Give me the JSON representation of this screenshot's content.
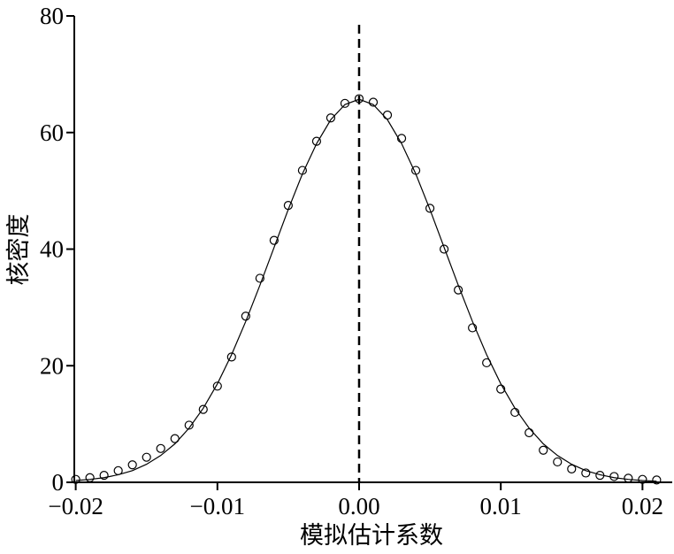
{
  "chart_data": {
    "type": "scatter",
    "x_label": "模拟估计系数",
    "y_label": "核密度",
    "x": [
      -0.02,
      -0.019,
      -0.018,
      -0.017,
      -0.016,
      -0.015,
      -0.014,
      -0.013,
      -0.012,
      -0.011,
      -0.01,
      -0.009,
      -0.008,
      -0.007,
      -0.006,
      -0.005,
      -0.004,
      -0.003,
      -0.002,
      -0.001,
      0.0,
      0.001,
      0.002,
      0.003,
      0.004,
      0.005,
      0.006,
      0.007,
      0.008,
      0.009,
      0.01,
      0.011,
      0.012,
      0.013,
      0.014,
      0.015,
      0.016,
      0.017,
      0.018,
      0.019,
      0.02,
      0.021
    ],
    "values": [
      0.5,
      0.8,
      1.2,
      2.0,
      3.0,
      4.3,
      5.8,
      7.5,
      9.8,
      12.5,
      16.5,
      21.5,
      28.5,
      35,
      41.5,
      47.5,
      53.5,
      58.5,
      62.5,
      65,
      65.8,
      65.2,
      63,
      59,
      53.5,
      47,
      40,
      33,
      26.5,
      20.5,
      16,
      12,
      8.5,
      5.5,
      3.5,
      2.3,
      1.6,
      1.2,
      1.0,
      0.7,
      0.5,
      0.4
    ],
    "fit": {
      "type": "line",
      "values": [
        0.3,
        0.5,
        0.8,
        1.3,
        2.0,
        3.1,
        4.6,
        6.6,
        9.3,
        12.7,
        16.9,
        21.9,
        27.6,
        33.8,
        40.3,
        46.8,
        52.9,
        58.1,
        62.2,
        64.8,
        65.7,
        64.8,
        62.2,
        58.1,
        52.9,
        46.8,
        40.3,
        33.8,
        27.6,
        21.9,
        16.9,
        12.7,
        9.3,
        6.6,
        4.6,
        3.1,
        2.0,
        1.3,
        0.8,
        0.5,
        0.3,
        0.2
      ]
    },
    "vline": 0,
    "xlim": [
      -0.0201,
      0.0221
    ],
    "xticks": [
      {
        "value": -0.02,
        "label": "−0.02"
      },
      {
        "value": -0.01,
        "label": "−0.01"
      },
      {
        "value": 0,
        "label": "0.00"
      },
      0.01,
      0.02
    ],
    "ylim": [
      0,
      80
    ],
    "yticks": [
      0,
      20,
      40,
      60,
      80
    ],
    "color": "#000000"
  }
}
